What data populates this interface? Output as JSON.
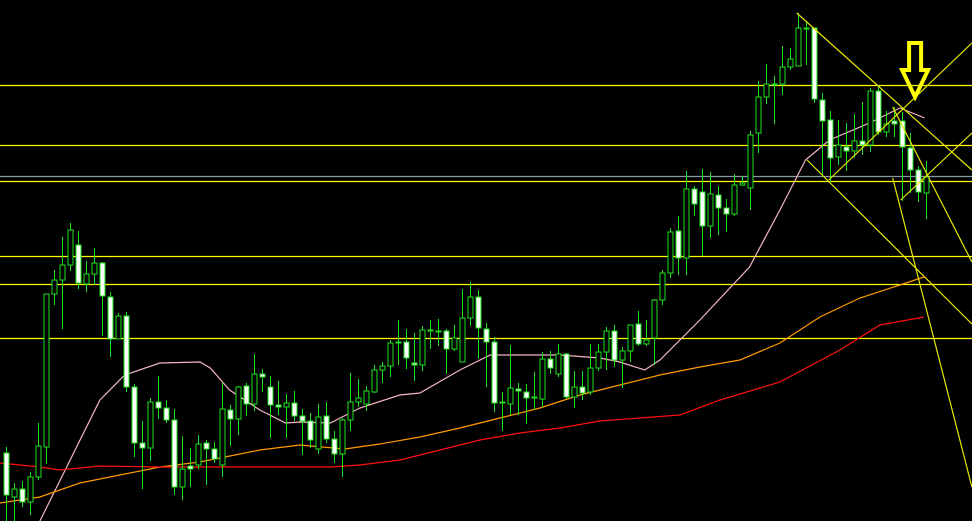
{
  "chart_data": {
    "type": "candlestick",
    "title": "",
    "xlabel": "",
    "ylabel": "",
    "grid": false,
    "legend": "none",
    "xlim": [
      -0.7,
      120.8
    ],
    "ylim": [
      0,
      52.1
    ],
    "colors": {
      "background": "#000000",
      "candle_outline": "#1ee01e",
      "bear_body": "#ffffff",
      "bull_body": "#000000",
      "ma_fast": "#f4b6c2",
      "ma_mid": "#ff9900",
      "ma_slow": "#ff1010",
      "levels": "#ffff00",
      "grey_level": "#8a98a4",
      "trendlines": "#e8e800",
      "arrow": "#ffff00"
    },
    "candles_ohlc": [
      [
        6.8,
        7.4,
        0,
        2.6
      ],
      [
        2.4,
        3.8,
        0,
        3.2
      ],
      [
        3.2,
        4.0,
        1.4,
        1.9
      ],
      [
        1.9,
        4.9,
        0.6,
        4.4
      ],
      [
        4.4,
        9.8,
        4.1,
        7.5
      ],
      [
        7.4,
        22.7,
        5.7,
        22.7
      ],
      [
        22.7,
        25.1,
        21.6,
        24.1
      ],
      [
        24.1,
        28.4,
        19.2,
        25.6
      ],
      [
        25.6,
        29.8,
        25.0,
        29.1
      ],
      [
        27.6,
        29.0,
        23.2,
        23.8
      ],
      [
        23.7,
        26.0,
        22.9,
        24.7
      ],
      [
        24.7,
        27.3,
        23.6,
        25.8
      ],
      [
        25.8,
        25.9,
        18.5,
        22.5
      ],
      [
        22.4,
        22.9,
        16.4,
        18.2
      ],
      [
        18.2,
        20.8,
        18.2,
        20.5
      ],
      [
        20.5,
        20.9,
        12.9,
        13.4
      ],
      [
        13.4,
        13.7,
        6.4,
        7.8
      ],
      [
        7.8,
        10.0,
        3.2,
        7.3
      ],
      [
        7.3,
        12.3,
        6.0,
        11.9
      ],
      [
        11.9,
        14.5,
        10.2,
        11.3
      ],
      [
        11.3,
        12.1,
        9.8,
        10.1
      ],
      [
        10.1,
        11.2,
        2.6,
        3.4
      ],
      [
        3.4,
        8.5,
        2.1,
        5.2
      ],
      [
        5.5,
        7.3,
        3.4,
        5.2
      ],
      [
        5.6,
        8.6,
        5.2,
        7.7
      ],
      [
        7.8,
        8.1,
        3.6,
        7.2
      ],
      [
        7.2,
        7.9,
        5.8,
        6.2
      ],
      [
        5.6,
        13.8,
        4.4,
        11.2
      ],
      [
        11.1,
        11.6,
        7.5,
        10.2
      ],
      [
        10.2,
        13.5,
        8.6,
        13.4
      ],
      [
        13.5,
        13.8,
        10.5,
        11.7
      ],
      [
        11.7,
        16.7,
        11.0,
        14.7
      ],
      [
        14.7,
        15.2,
        12.9,
        14.4
      ],
      [
        13.4,
        14.5,
        8.3,
        11.6
      ],
      [
        11.6,
        14.0,
        10.6,
        11.4
      ],
      [
        11.4,
        12.7,
        8.3,
        11.8
      ],
      [
        11.8,
        13.0,
        10.0,
        10.5
      ],
      [
        10.5,
        11.2,
        6.6,
        10.0
      ],
      [
        10.0,
        10.8,
        7.3,
        8.1
      ],
      [
        7.2,
        11.7,
        6.7,
        10.4
      ],
      [
        10.5,
        11.9,
        7.8,
        8.2
      ],
      [
        8.2,
        9.0,
        5.8,
        6.7
      ],
      [
        6.7,
        10.3,
        4.4,
        10.1
      ],
      [
        10.1,
        14.8,
        9.0,
        11.9
      ],
      [
        11.9,
        14.2,
        11.4,
        12.3
      ],
      [
        11.7,
        13.5,
        11.0,
        13.0
      ],
      [
        12.9,
        15.6,
        12.8,
        15.1
      ],
      [
        15.1,
        15.9,
        13.8,
        15.5
      ],
      [
        15.5,
        18.1,
        14.4,
        17.8
      ],
      [
        17.8,
        20.1,
        15.6,
        17.9
      ],
      [
        17.9,
        19.2,
        15.2,
        16.3
      ],
      [
        15.8,
        18.8,
        14.0,
        15.6
      ],
      [
        15.6,
        19.5,
        15.0,
        19.1
      ],
      [
        19.0,
        20.1,
        17.2,
        19.1
      ],
      [
        18.9,
        20.2,
        17.5,
        19.0
      ],
      [
        19.0,
        19.2,
        14.7,
        17.2
      ],
      [
        17.2,
        19.6,
        17.0,
        18.3
      ],
      [
        15.9,
        23.2,
        15.9,
        20.3
      ],
      [
        20.3,
        23.9,
        19.5,
        22.4
      ],
      [
        22.4,
        23.1,
        16.2,
        19.3
      ],
      [
        19.2,
        19.8,
        13.4,
        17.9
      ],
      [
        17.9,
        18.4,
        10.9,
        11.8
      ],
      [
        11.8,
        12.9,
        9.0,
        11.9
      ],
      [
        11.7,
        17.6,
        10.6,
        13.3
      ],
      [
        13.2,
        13.8,
        10.6,
        13.0
      ],
      [
        12.9,
        13.7,
        9.7,
        12.3
      ],
      [
        12.3,
        14.9,
        11.1,
        12.4
      ],
      [
        12.2,
        16.9,
        11.4,
        16.2
      ],
      [
        16.2,
        17.0,
        14.7,
        15.3
      ],
      [
        14.7,
        17.7,
        14.4,
        16.7
      ],
      [
        16.7,
        16.8,
        12.2,
        12.4
      ],
      [
        12.4,
        15.0,
        11.3,
        13.4
      ],
      [
        13.4,
        15.0,
        12.1,
        12.8
      ],
      [
        12.9,
        17.7,
        12.6,
        15.3
      ],
      [
        15.3,
        17.7,
        15.0,
        16.9
      ],
      [
        16.9,
        19.4,
        15.1,
        19.0
      ],
      [
        19.0,
        19.6,
        15.4,
        16.1
      ],
      [
        16.1,
        17.4,
        13.3,
        17.0
      ],
      [
        17.0,
        19.6,
        15.9,
        19.6
      ],
      [
        19.7,
        21.0,
        17.5,
        17.7
      ],
      [
        17.7,
        20.1,
        17.5,
        18.1
      ],
      [
        18.3,
        22.2,
        15.6,
        22.1
      ],
      [
        22.1,
        25.1,
        21.6,
        24.8
      ],
      [
        24.8,
        29.3,
        24.3,
        28.9
      ],
      [
        29.0,
        30.5,
        24.6,
        26.3
      ],
      [
        26.3,
        35.0,
        24.6,
        33.2
      ],
      [
        33.2,
        33.5,
        30.5,
        31.7
      ],
      [
        32.9,
        35.2,
        26.5,
        29.5
      ],
      [
        29.5,
        34.9,
        28.3,
        32.7
      ],
      [
        32.6,
        33.5,
        28.6,
        31.3
      ],
      [
        31.3,
        32.2,
        28.9,
        30.7
      ],
      [
        30.7,
        34.7,
        30.5,
        33.6
      ],
      [
        33.6,
        34.5,
        33.5,
        33.8
      ],
      [
        33.3,
        39.0,
        31.1,
        38.6
      ],
      [
        38.8,
        44.0,
        36.8,
        42.4
      ],
      [
        42.4,
        45.7,
        41.7,
        43.7
      ],
      [
        43.6,
        44.5,
        39.7,
        43.7
      ],
      [
        43.7,
        47.5,
        42.6,
        45.4
      ],
      [
        45.4,
        47.3,
        45.1,
        46.2
      ],
      [
        45.5,
        50.8,
        45.5,
        49.3
      ],
      [
        49.3,
        50.0,
        45.6,
        49.3
      ],
      [
        49.3,
        49.3,
        41.8,
        42.2
      ],
      [
        42.1,
        42.8,
        34.4,
        40.0
      ],
      [
        40.1,
        41.0,
        33.9,
        36.3
      ],
      [
        36.4,
        40.1,
        35.6,
        37.6
      ],
      [
        37.4,
        39.8,
        35.0,
        37.0
      ],
      [
        37.0,
        40.7,
        36.3,
        38.0
      ],
      [
        38.0,
        41.9,
        36.6,
        37.6
      ],
      [
        37.6,
        43.3,
        36.9,
        43.0
      ],
      [
        43.0,
        43.6,
        38.6,
        38.9
      ],
      [
        38.9,
        41.0,
        38.4,
        39.7
      ],
      [
        40.0,
        41.4,
        38.4,
        39.7
      ],
      [
        40.0,
        40.9,
        32.0,
        37.4
      ],
      [
        37.3,
        38.8,
        32.8,
        35.1
      ],
      [
        35.1,
        35.5,
        31.9,
        32.9
      ],
      [
        32.8,
        36.0,
        30.2,
        34.4
      ]
    ],
    "moving_averages": [
      {
        "color_key": "ma_fast",
        "points": [
          [
            4.3,
            0
          ],
          [
            11.8,
            12.1
          ],
          [
            14.9,
            14.6
          ],
          [
            19.3,
            15.8
          ],
          [
            24.3,
            15.9
          ],
          [
            25.6,
            15.3
          ],
          [
            28,
            13.1
          ],
          [
            31.8,
            11.1
          ],
          [
            35,
            9.8
          ],
          [
            36.8,
            9.9
          ],
          [
            40.6,
            9.8
          ],
          [
            44.3,
            11.3
          ],
          [
            49.3,
            12.6
          ],
          [
            51.8,
            12.8
          ],
          [
            56.8,
            15.1
          ],
          [
            60.6,
            16.6
          ],
          [
            64.3,
            16.6
          ],
          [
            69.3,
            16.6
          ],
          [
            74.3,
            16.3
          ],
          [
            76.8,
            15.9
          ],
          [
            79.9,
            15.1
          ],
          [
            81.8,
            16.1
          ],
          [
            86.8,
            20.1
          ],
          [
            93,
            25.4
          ],
          [
            96.8,
            31.1
          ],
          [
            100,
            36.1
          ],
          [
            103,
            38.1
          ],
          [
            108,
            39.8
          ],
          [
            111.8,
            41.3
          ],
          [
            114.9,
            40.3
          ]
        ]
      },
      {
        "color_key": "ma_mid",
        "points": [
          [
            -0.7,
            1.8
          ],
          [
            4.3,
            2.4
          ],
          [
            9.3,
            3.8
          ],
          [
            14.3,
            4.6
          ],
          [
            19.3,
            5.4
          ],
          [
            24.3,
            5.9
          ],
          [
            31.8,
            7.1
          ],
          [
            36.8,
            7.6
          ],
          [
            42.4,
            7.2
          ],
          [
            46.8,
            7.7
          ],
          [
            51.8,
            8.4
          ],
          [
            56.8,
            9.3
          ],
          [
            61.8,
            10.3
          ],
          [
            66.8,
            11.3
          ],
          [
            71.8,
            12.6
          ],
          [
            76.8,
            13.6
          ],
          [
            81.8,
            14.6
          ],
          [
            86.8,
            15.4
          ],
          [
            91.8,
            16.1
          ],
          [
            96.8,
            17.8
          ],
          [
            101.8,
            20.4
          ],
          [
            106.8,
            22.3
          ],
          [
            111.8,
            23.6
          ],
          [
            114.8,
            24.4
          ]
        ]
      },
      {
        "color_key": "ma_slow",
        "points": [
          [
            -0.7,
            5.8
          ],
          [
            4.3,
            5.4
          ],
          [
            6.8,
            5.1
          ],
          [
            11.8,
            5.5
          ],
          [
            19.3,
            5.4
          ],
          [
            31.8,
            5.4
          ],
          [
            40.6,
            5.4
          ],
          [
            44.3,
            5.6
          ],
          [
            49.3,
            6.1
          ],
          [
            54.3,
            7.1
          ],
          [
            59.3,
            8.1
          ],
          [
            64.3,
            8.8
          ],
          [
            69.3,
            9.3
          ],
          [
            74.3,
            10.0
          ],
          [
            79.3,
            10.3
          ],
          [
            84.3,
            10.6
          ],
          [
            89.3,
            12.1
          ],
          [
            96.8,
            13.9
          ],
          [
            104.3,
            17.1
          ],
          [
            109.3,
            19.6
          ],
          [
            114.8,
            20.4
          ]
        ]
      }
    ],
    "horizontal_levels": [
      {
        "price": 43.6,
        "color_key": "levels"
      },
      {
        "price": 37.6,
        "color_key": "levels"
      },
      {
        "price": 34.5,
        "color_key": "grey_level"
      },
      {
        "price": 34.0,
        "color_key": "levels"
      },
      {
        "price": 26.5,
        "color_key": "levels"
      },
      {
        "price": 23.7,
        "color_key": "levels"
      },
      {
        "price": 18.3,
        "color_key": "levels"
      }
    ],
    "trendlines": [
      {
        "from": [
          98.9,
          50.8
        ],
        "to": [
          120.8,
          35.1
        ]
      },
      {
        "from": [
          102.9,
          34.1
        ],
        "to": [
          120.8,
          47.8
        ]
      },
      {
        "from": [
          100.2,
          36.1
        ],
        "to": [
          120.8,
          19.7
        ]
      },
      {
        "from": [
          110.9,
          41.4
        ],
        "to": [
          120.8,
          25.9
        ]
      },
      {
        "from": [
          111.9,
          32.1
        ],
        "to": [
          120.8,
          38.8
        ]
      },
      {
        "from": [
          110.9,
          34.3
        ],
        "to": [
          120.8,
          3.4
        ]
      }
    ],
    "annotation_arrow": {
      "icon": "down-arrow",
      "index": 113.7,
      "tip_price": 42.4
    }
  }
}
